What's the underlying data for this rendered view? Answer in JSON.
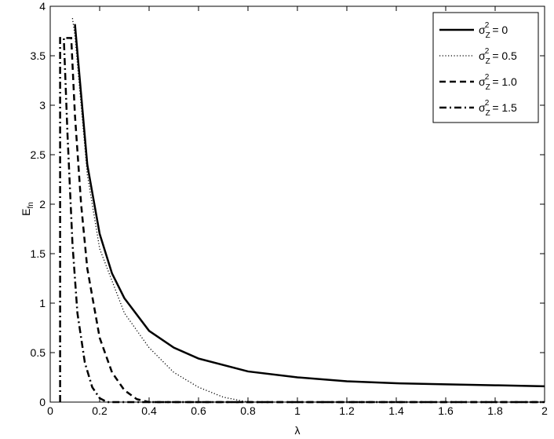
{
  "chart_data": {
    "type": "line",
    "xlabel": "λ",
    "ylabel": {
      "base": "E",
      "sub": "fn"
    },
    "legend_symbol": {
      "base": "σ",
      "sub": "Z",
      "sup": "2"
    },
    "legend": "upper right",
    "xlim": [
      0,
      2
    ],
    "xticks": [
      0,
      0.2,
      0.4,
      0.6,
      0.8,
      1,
      1.2,
      1.4,
      1.6,
      1.8,
      2
    ],
    "ylim": [
      0,
      4
    ],
    "yticks": [
      0,
      0.5,
      1,
      1.5,
      2,
      2.5,
      3,
      3.5,
      4
    ],
    "series": [
      {
        "name": "= 0",
        "color": "#000000",
        "style": "solid",
        "x": [
          0.1,
          0.15,
          0.2,
          0.25,
          0.3,
          0.4,
          0.5,
          0.6,
          0.8,
          1.0,
          1.2,
          1.4,
          1.6,
          1.8,
          2.0
        ],
        "values": [
          3.82,
          2.4,
          1.7,
          1.3,
          1.05,
          0.72,
          0.55,
          0.44,
          0.31,
          0.25,
          0.21,
          0.19,
          0.18,
          0.17,
          0.16
        ]
      },
      {
        "name": "= 0.5",
        "color": "#000000",
        "style": "dotted",
        "x": [
          0.09,
          0.1,
          0.15,
          0.2,
          0.3,
          0.4,
          0.5,
          0.6,
          0.7,
          0.8,
          2.0
        ],
        "values": [
          3.88,
          3.7,
          2.3,
          1.55,
          0.9,
          0.55,
          0.3,
          0.15,
          0.05,
          0,
          0
        ]
      },
      {
        "name": "= 1.0",
        "color": "#000000",
        "style": "dashed",
        "x": [
          0.065,
          0.085,
          0.1,
          0.125,
          0.15,
          0.2,
          0.25,
          0.3,
          0.35,
          0.4,
          2.0
        ],
        "values": [
          3.68,
          3.68,
          2.9,
          2.0,
          1.35,
          0.65,
          0.3,
          0.12,
          0.03,
          0,
          0
        ]
      },
      {
        "name": "= 1.5",
        "color": "#000000",
        "style": "dashdot",
        "x": [
          0.04,
          0.04,
          0.055,
          0.07,
          0.09,
          0.11,
          0.14,
          0.17,
          0.2,
          0.23,
          2.0
        ],
        "values": [
          0,
          3.68,
          3.68,
          2.7,
          1.6,
          0.9,
          0.4,
          0.15,
          0.04,
          0,
          0
        ]
      }
    ]
  }
}
